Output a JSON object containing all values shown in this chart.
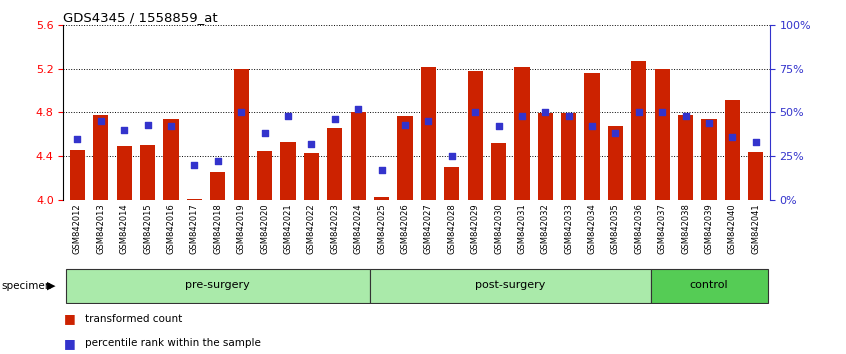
{
  "title": "GDS4345 / 1558859_at",
  "samples": [
    "GSM842012",
    "GSM842013",
    "GSM842014",
    "GSM842015",
    "GSM842016",
    "GSM842017",
    "GSM842018",
    "GSM842019",
    "GSM842020",
    "GSM842021",
    "GSM842022",
    "GSM842023",
    "GSM842024",
    "GSM842025",
    "GSM842026",
    "GSM842027",
    "GSM842028",
    "GSM842029",
    "GSM842030",
    "GSM842031",
    "GSM842032",
    "GSM842033",
    "GSM842034",
    "GSM842035",
    "GSM842036",
    "GSM842037",
    "GSM842038",
    "GSM842039",
    "GSM842040",
    "GSM842041"
  ],
  "red_values": [
    4.46,
    4.78,
    4.49,
    4.5,
    4.74,
    4.01,
    4.26,
    5.2,
    4.45,
    4.53,
    4.43,
    4.66,
    4.8,
    4.03,
    4.77,
    5.21,
    4.3,
    5.18,
    4.52,
    5.21,
    4.79,
    4.79,
    5.16,
    4.68,
    5.27,
    5.2,
    4.78,
    4.74,
    4.91,
    4.44
  ],
  "blue_pct": [
    35,
    45,
    40,
    43,
    42,
    20,
    22,
    50,
    38,
    48,
    32,
    46,
    52,
    17,
    43,
    45,
    25,
    50,
    42,
    48,
    50,
    48,
    42,
    38,
    50,
    50,
    48,
    44,
    36,
    33
  ],
  "ymin": 4.0,
  "ymax": 5.6,
  "yticks_red": [
    4.0,
    4.4,
    4.8,
    5.2,
    5.6
  ],
  "yticks_blue": [
    0,
    25,
    50,
    75,
    100
  ],
  "bar_color": "#CC2200",
  "blue_color": "#3333CC",
  "bar_width": 0.65,
  "groups": [
    {
      "name": "pre-surgery",
      "start": 0,
      "end": 13,
      "color": "#aaeaaa"
    },
    {
      "name": "post-surgery",
      "start": 13,
      "end": 25,
      "color": "#aaeaaa"
    },
    {
      "name": "control",
      "start": 25,
      "end": 30,
      "color": "#55cc55"
    }
  ],
  "xlabel_color": "#444444",
  "tick_bg_color": "#cccccc",
  "group_border_color": "#333333"
}
